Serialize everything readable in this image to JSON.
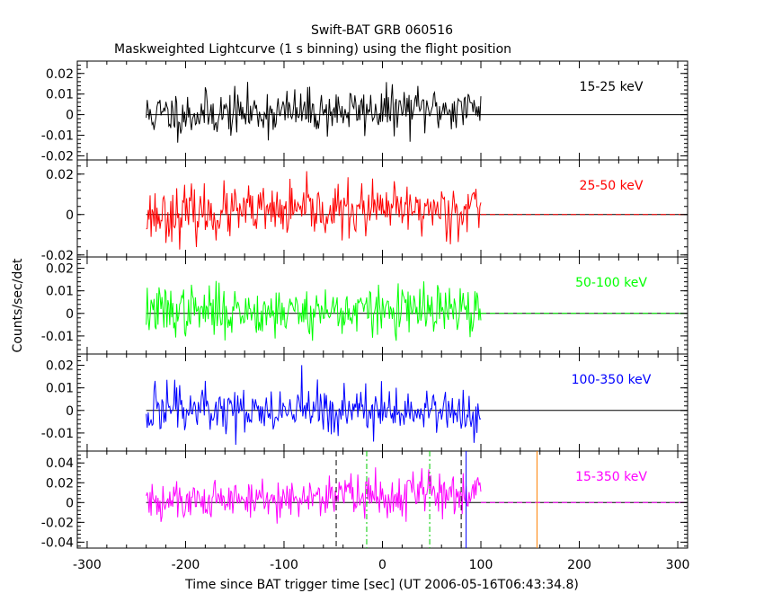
{
  "title": "Swift-BAT GRB 060516",
  "subtitle": "Maskweighted Lightcurve (1 s binning) using the flight position",
  "ylabel": "Counts/sec/det",
  "xlabel": "Time since BAT trigger time [sec] (UT 2006-05-16T06:43:34.8)",
  "colors": {
    "axes": "#000000",
    "panel_15_25": "#000000",
    "panel_25_50": "#ff0000",
    "panel_50_100": "#00ff00",
    "panel_100_350": "#0000ff",
    "panel_15_350": "#ff00ff",
    "marker_black": "#000000",
    "marker_green": "#00cc00",
    "marker_blue": "#0000ff",
    "marker_orange": "#ff8000"
  },
  "chart_data": {
    "type": "line",
    "x_range": [
      -310,
      310
    ],
    "x_ticks": [
      -300,
      -200,
      -100,
      0,
      100,
      200,
      300
    ],
    "data_range": [
      -240,
      100
    ],
    "panels": [
      {
        "band": "15-25 keV",
        "color_key": "panel_15_25",
        "ylim": [
          -0.022,
          0.026
        ],
        "yticks": [
          -0.02,
          -0.01,
          0,
          0.01,
          0.02
        ],
        "ytick_labels": [
          "-0.02",
          "-0.01",
          "0",
          "0.01",
          "0.02"
        ],
        "noise": 0.0055,
        "trend": [
          0.0,
          0.003
        ],
        "seed": 11
      },
      {
        "band": "25-50 keV",
        "color_key": "panel_25_50",
        "ylim": [
          -0.021,
          0.027
        ],
        "yticks": [
          -0.02,
          0,
          0.02
        ],
        "ytick_labels": [
          "-0.02",
          "0",
          "0.02"
        ],
        "noise": 0.0065,
        "trend": [
          0.0,
          0.003
        ],
        "seed": 23
      },
      {
        "band": "50-100 keV",
        "color_key": "panel_50_100",
        "ylim": [
          -0.018,
          0.025
        ],
        "yticks": [
          -0.01,
          0,
          0.01,
          0.02
        ],
        "ytick_labels": [
          "-0.01",
          "0",
          "0.01",
          "0.02"
        ],
        "noise": 0.0055,
        "trend": [
          0.001,
          0.001
        ],
        "seed": 37
      },
      {
        "band": "100-350 keV",
        "color_key": "panel_100_350",
        "ylim": [
          -0.018,
          0.025
        ],
        "yticks": [
          -0.01,
          0,
          0.01,
          0.02
        ],
        "ytick_labels": [
          "-0.01",
          "0",
          "0.01",
          "0.02"
        ],
        "noise": 0.0055,
        "trend": [
          0.0,
          0.0
        ],
        "seed": 49
      },
      {
        "band": "15-350 keV",
        "color_key": "panel_15_350",
        "ylim": [
          -0.046,
          0.052
        ],
        "yticks": [
          -0.04,
          -0.02,
          0,
          0.02,
          0.04
        ],
        "ytick_labels": [
          "-0.04",
          "-0.02",
          "0",
          "0.02",
          "0.04"
        ],
        "noise": 0.011,
        "trend": [
          0.0,
          0.012
        ],
        "seed": 61
      }
    ],
    "markers": [
      {
        "x": -47,
        "style": "dash",
        "color_key": "marker_black"
      },
      {
        "x": -16,
        "style": "dashdot",
        "color_key": "marker_green"
      },
      {
        "x": 48,
        "style": "dashdot",
        "color_key": "marker_green"
      },
      {
        "x": 80,
        "style": "dash",
        "color_key": "marker_black"
      },
      {
        "x": 85,
        "style": "solid",
        "color_key": "marker_blue"
      },
      {
        "x": 157,
        "style": "solid",
        "color_key": "marker_orange"
      }
    ]
  }
}
